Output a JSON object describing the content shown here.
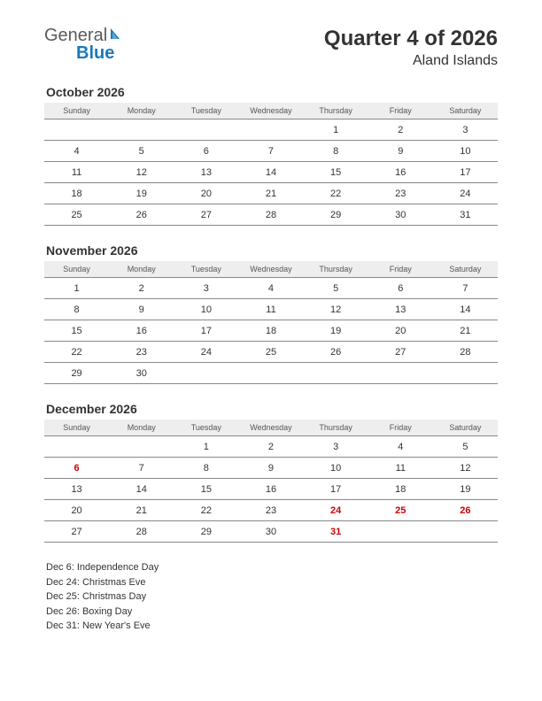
{
  "logo": {
    "text1": "General",
    "text2": "Blue"
  },
  "title": "Quarter 4 of 2026",
  "subtitle": "Aland Islands",
  "daynames": [
    "Sunday",
    "Monday",
    "Tuesday",
    "Wednesday",
    "Thursday",
    "Friday",
    "Saturday"
  ],
  "colors": {
    "header_bg": "#eeeeee",
    "border": "#888888",
    "text": "#333333",
    "holiday": "#cc0000",
    "logo_gray": "#5a5a5a",
    "logo_blue": "#1a7bb8",
    "background": "#ffffff"
  },
  "typography": {
    "main_title_size": 24,
    "sub_title_size": 16,
    "month_title_size": 14,
    "dayname_size": 9,
    "cell_size": 11,
    "holiday_size": 11
  },
  "months": [
    {
      "name": "October 2026",
      "weeks": [
        [
          "",
          "",
          "",
          "",
          "1",
          "2",
          "3"
        ],
        [
          "4",
          "5",
          "6",
          "7",
          "8",
          "9",
          "10"
        ],
        [
          "11",
          "12",
          "13",
          "14",
          "15",
          "16",
          "17"
        ],
        [
          "18",
          "19",
          "20",
          "21",
          "22",
          "23",
          "24"
        ],
        [
          "25",
          "26",
          "27",
          "28",
          "29",
          "30",
          "31"
        ]
      ],
      "holidays": []
    },
    {
      "name": "November 2026",
      "weeks": [
        [
          "1",
          "2",
          "3",
          "4",
          "5",
          "6",
          "7"
        ],
        [
          "8",
          "9",
          "10",
          "11",
          "12",
          "13",
          "14"
        ],
        [
          "15",
          "16",
          "17",
          "18",
          "19",
          "20",
          "21"
        ],
        [
          "22",
          "23",
          "24",
          "25",
          "26",
          "27",
          "28"
        ],
        [
          "29",
          "30",
          "",
          "",
          "",
          "",
          ""
        ]
      ],
      "holidays": []
    },
    {
      "name": "December 2026",
      "weeks": [
        [
          "",
          "",
          "1",
          "2",
          "3",
          "4",
          "5"
        ],
        [
          "6",
          "7",
          "8",
          "9",
          "10",
          "11",
          "12"
        ],
        [
          "13",
          "14",
          "15",
          "16",
          "17",
          "18",
          "19"
        ],
        [
          "20",
          "21",
          "22",
          "23",
          "24",
          "25",
          "26"
        ],
        [
          "27",
          "28",
          "29",
          "30",
          "31",
          "",
          ""
        ]
      ],
      "holidays": [
        "6",
        "24",
        "25",
        "26",
        "31"
      ]
    }
  ],
  "holiday_list": [
    "Dec 6: Independence Day",
    "Dec 24: Christmas Eve",
    "Dec 25: Christmas Day",
    "Dec 26: Boxing Day",
    "Dec 31: New Year's Eve"
  ]
}
